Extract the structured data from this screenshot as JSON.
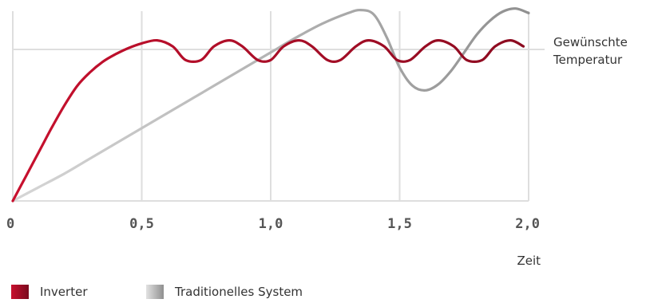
{
  "chart_data": {
    "type": "line",
    "xlabel": "Zeit",
    "ylabel": "",
    "xlim": [
      0,
      2.0
    ],
    "ylim": [
      0,
      1.3
    ],
    "x_ticks": [
      0,
      0.5,
      1.0,
      1.5,
      2.0
    ],
    "x_tick_labels": [
      "0",
      "0,5",
      "1,0",
      "1,5",
      "2,0"
    ],
    "grid": true,
    "reference_line": {
      "label_lines": [
        "Gewünschte",
        "Temperatur"
      ],
      "y": 1.0
    },
    "legend_position": "bottom-left",
    "series": [
      {
        "name": "Inverter",
        "color": "#c8102e",
        "end_color": "#8b0b20",
        "x": [
          0,
          0.05,
          0.1,
          0.15,
          0.2,
          0.25,
          0.3,
          0.35,
          0.4,
          0.45,
          0.5,
          0.56,
          0.62,
          0.67,
          0.73,
          0.78,
          0.84,
          0.89,
          0.95,
          1.0,
          1.05,
          1.11,
          1.16,
          1.22,
          1.27,
          1.33,
          1.38,
          1.44,
          1.49,
          1.54,
          1.6,
          1.65,
          1.71,
          1.76,
          1.82,
          1.87,
          1.93,
          1.98
        ],
        "y": [
          0,
          0.16,
          0.32,
          0.48,
          0.63,
          0.76,
          0.85,
          0.92,
          0.97,
          1.01,
          1.04,
          1.06,
          1.02,
          0.93,
          0.93,
          1.02,
          1.06,
          1.02,
          0.93,
          0.93,
          1.02,
          1.06,
          1.02,
          0.93,
          0.93,
          1.02,
          1.06,
          1.02,
          0.93,
          0.93,
          1.02,
          1.06,
          1.02,
          0.93,
          0.93,
          1.02,
          1.06,
          1.02
        ]
      },
      {
        "name": "Traditionelles System",
        "color": "#d6d6d6",
        "end_color": "#909090",
        "x": [
          0,
          0.1,
          0.2,
          0.3,
          0.4,
          0.5,
          0.6,
          0.7,
          0.8,
          0.9,
          1.0,
          1.1,
          1.2,
          1.3,
          1.35,
          1.4,
          1.45,
          1.5,
          1.55,
          1.6,
          1.65,
          1.7,
          1.75,
          1.8,
          1.85,
          1.9,
          1.95,
          2.0
        ],
        "y": [
          0,
          0.09,
          0.18,
          0.28,
          0.38,
          0.48,
          0.58,
          0.68,
          0.78,
          0.88,
          0.98,
          1.08,
          1.17,
          1.24,
          1.26,
          1.23,
          1.08,
          0.88,
          0.76,
          0.73,
          0.77,
          0.86,
          0.98,
          1.1,
          1.19,
          1.25,
          1.27,
          1.24
        ]
      }
    ]
  }
}
